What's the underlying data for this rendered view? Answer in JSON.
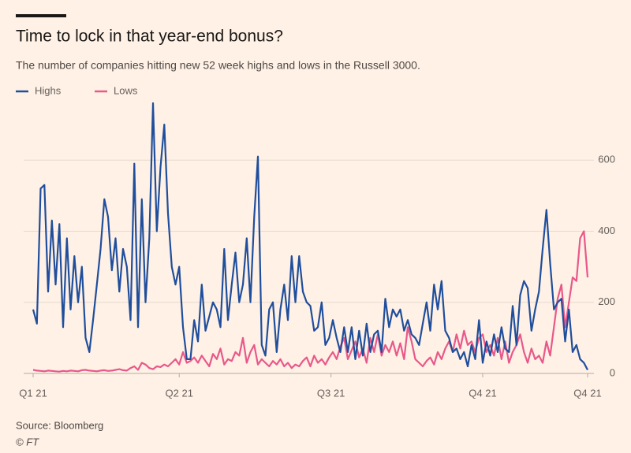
{
  "chart_data": {
    "type": "line",
    "title": "Time to lock in that year-end bonus?",
    "subtitle": "The number of companies hitting new 52 week highs and lows in the Russell 3000.",
    "source": "Source: Bloomberg",
    "credit": "© FT",
    "x": [
      0,
      2,
      4,
      6,
      8,
      10,
      12,
      14,
      16,
      18,
      20,
      22,
      24,
      26,
      28,
      30,
      32,
      34,
      36,
      38,
      40,
      42,
      44,
      46,
      48,
      50,
      52,
      54,
      56,
      58,
      60,
      62,
      64,
      66,
      68,
      70,
      72,
      74,
      76,
      78,
      80,
      82,
      84,
      86,
      88,
      90,
      92,
      94,
      96,
      98,
      100,
      102,
      104,
      106,
      108,
      110,
      112,
      114,
      116,
      118,
      120,
      122,
      124,
      126,
      128,
      130,
      132,
      134,
      136,
      138,
      140,
      142,
      144,
      146,
      148,
      150,
      152,
      154,
      156,
      158,
      160,
      162,
      164,
      166,
      168,
      170,
      172,
      174,
      176,
      178,
      180,
      182,
      184,
      186,
      188,
      190,
      192,
      194,
      196,
      198,
      200,
      202,
      204,
      206,
      208,
      210,
      212,
      214,
      216,
      218,
      220,
      222,
      224,
      226,
      228,
      230,
      232,
      234,
      236,
      238,
      240,
      242,
      244,
      246,
      248,
      250,
      252,
      254,
      256,
      258,
      260,
      262,
      264,
      266,
      268,
      270,
      272,
      274,
      276,
      278,
      280,
      282,
      284,
      286,
      288,
      290,
      292,
      294,
      296
    ],
    "series": [
      {
        "name": "Highs",
        "color": "#1f4e9c",
        "values": [
          180,
          140,
          520,
          530,
          230,
          430,
          250,
          420,
          130,
          380,
          180,
          330,
          200,
          300,
          100,
          60,
          150,
          250,
          350,
          490,
          440,
          290,
          380,
          230,
          350,
          300,
          150,
          590,
          130,
          490,
          200,
          380,
          760,
          400,
          580,
          700,
          450,
          300,
          250,
          300,
          130,
          40,
          40,
          150,
          90,
          250,
          120,
          160,
          200,
          180,
          130,
          350,
          150,
          250,
          340,
          200,
          250,
          380,
          200,
          440,
          610,
          80,
          50,
          180,
          200,
          60,
          180,
          250,
          150,
          330,
          200,
          330,
          230,
          200,
          190,
          120,
          130,
          200,
          80,
          100,
          150,
          100,
          60,
          130,
          60,
          130,
          40,
          120,
          50,
          140,
          60,
          110,
          120,
          60,
          210,
          130,
          180,
          160,
          180,
          120,
          150,
          110,
          100,
          80,
          140,
          200,
          120,
          250,
          180,
          260,
          120,
          100,
          60,
          70,
          40,
          60,
          20,
          80,
          40,
          150,
          30,
          90,
          50,
          110,
          60,
          130,
          70,
          60,
          190,
          80,
          220,
          260,
          240,
          120,
          180,
          230,
          350,
          460,
          310,
          180,
          200,
          210,
          90,
          180,
          60,
          80,
          40,
          30,
          10
        ]
      },
      {
        "name": "Lows",
        "color": "#e8588a",
        "values": [
          10,
          8,
          7,
          6,
          8,
          7,
          6,
          5,
          7,
          6,
          8,
          7,
          6,
          9,
          10,
          8,
          7,
          6,
          8,
          9,
          7,
          8,
          10,
          12,
          9,
          8,
          15,
          20,
          10,
          30,
          25,
          15,
          12,
          20,
          18,
          25,
          20,
          30,
          40,
          25,
          60,
          30,
          35,
          45,
          30,
          50,
          35,
          20,
          55,
          40,
          70,
          25,
          40,
          35,
          60,
          50,
          100,
          30,
          60,
          80,
          25,
          40,
          30,
          20,
          35,
          25,
          40,
          20,
          30,
          15,
          25,
          20,
          35,
          45,
          20,
          50,
          30,
          40,
          25,
          45,
          60,
          40,
          75,
          100,
          40,
          65,
          90,
          45,
          70,
          30,
          100,
          60,
          110,
          50,
          80,
          60,
          90,
          50,
          85,
          40,
          130,
          90,
          40,
          30,
          20,
          35,
          45,
          25,
          60,
          40,
          70,
          90,
          60,
          110,
          70,
          120,
          80,
          90,
          60,
          100,
          110,
          60,
          80,
          50,
          100,
          40,
          90,
          30,
          60,
          80,
          110,
          60,
          30,
          70,
          40,
          50,
          30,
          90,
          50,
          130,
          210,
          250,
          130,
          200,
          270,
          260,
          380,
          400,
          270
        ]
      }
    ],
    "xlim": [
      0,
      296
    ],
    "xticks": [
      {
        "value": 0,
        "label": "Q1 21"
      },
      {
        "value": 78,
        "label": "Q2 21"
      },
      {
        "value": 159,
        "label": "Q3 21"
      },
      {
        "value": 240,
        "label": "Q4 21"
      },
      {
        "value": 296,
        "label": "Q4 21"
      }
    ],
    "ylim": [
      0,
      760
    ],
    "yticks": [
      0,
      200,
      400,
      600
    ],
    "grid": true,
    "y_axis_side": "right"
  }
}
